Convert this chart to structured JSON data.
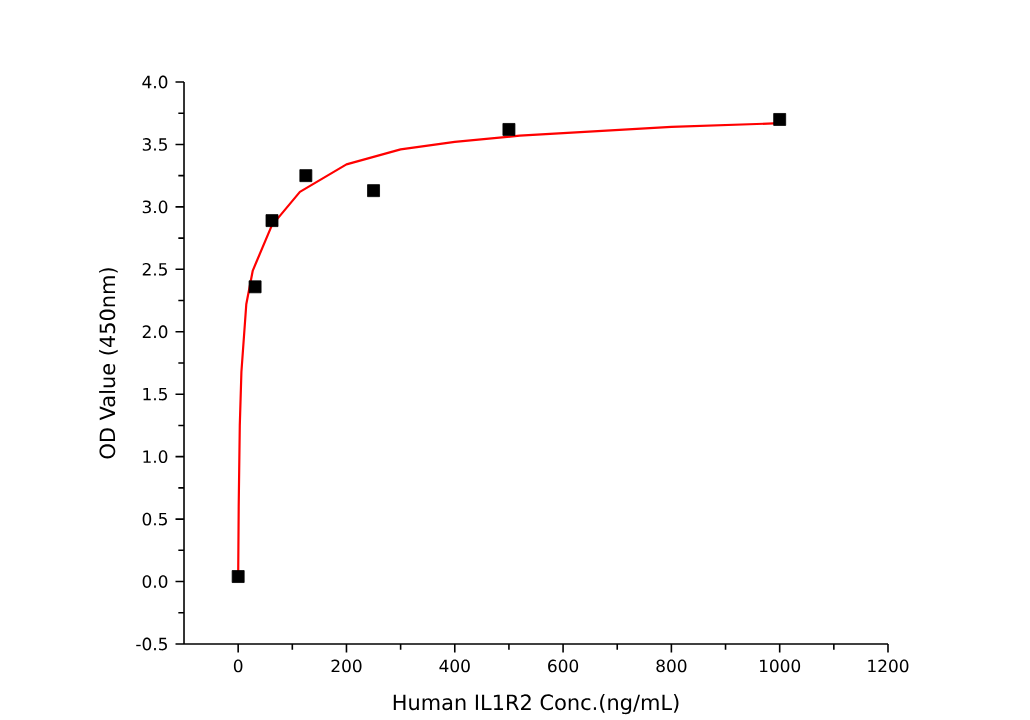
{
  "chart_data": {
    "type": "scatter",
    "xlabel": "Human IL1R2 Conc.(ng/mL)",
    "ylabel": "OD Value (450nm)",
    "xlim": [
      -100,
      1200
    ],
    "xticks": [
      0,
      200,
      400,
      600,
      800,
      1000,
      1200
    ],
    "ylim": [
      -0.5,
      4.0
    ],
    "yticks": [
      {
        "value": -0.5,
        "label": "-0.5"
      },
      {
        "value": 0,
        "label": "0.0"
      },
      {
        "value": 0.5,
        "label": "0.5"
      },
      {
        "value": 1,
        "label": "1.0"
      },
      {
        "value": 1.5,
        "label": "1.5"
      },
      {
        "value": 2,
        "label": "2.0"
      },
      {
        "value": 2.5,
        "label": "2.5"
      },
      {
        "value": 3,
        "label": "3.0"
      },
      {
        "value": 3.5,
        "label": "3.5"
      },
      {
        "value": 4,
        "label": "4.0"
      }
    ],
    "grid": false,
    "series": [
      {
        "color": "#000000",
        "marker": "square",
        "x": [
          0,
          31.25,
          62.5,
          125,
          250,
          500,
          1000
        ],
        "values": [
          0.04,
          2.36,
          2.89,
          3.25,
          3.13,
          3.62,
          3.7
        ]
      },
      {
        "type": "line",
        "color": "#ff0000",
        "marker": "none",
        "line_style": "solid",
        "x": [
          0,
          1,
          3,
          6,
          15,
          27,
          62,
          114,
          200,
          300,
          400,
          520,
          800,
          1000
        ],
        "values": [
          0.03,
          0.6,
          1.25,
          1.68,
          2.22,
          2.49,
          2.85,
          3.12,
          3.34,
          3.46,
          3.52,
          3.57,
          3.64,
          3.67
        ]
      }
    ]
  }
}
